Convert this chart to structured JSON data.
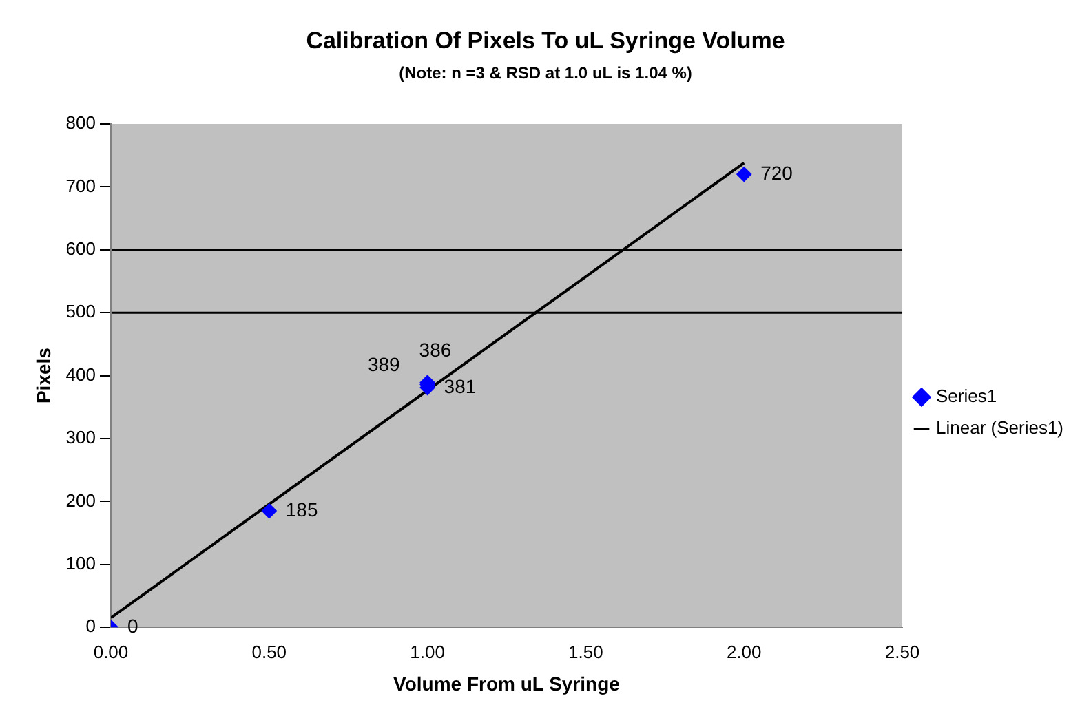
{
  "chart_data": {
    "type": "scatter",
    "title": "Calibration Of Pixels To uL Syringe Volume",
    "subtitle": "(Note: n =3 & RSD at 1.0 uL is 1.04 %)",
    "xlabel": "Volume From uL Syringe",
    "ylabel": "Pixels",
    "series": [
      {
        "name": "Series1",
        "color": "#0000ff",
        "marker": "diamond",
        "x": [
          0,
          0.5,
          1,
          1,
          1,
          2
        ],
        "values": [
          0,
          185,
          389,
          386,
          381,
          720
        ],
        "value_labels": [
          "0",
          "185",
          "389",
          "386",
          "381",
          "720"
        ]
      },
      {
        "name": "Linear (Series1)",
        "type": "line",
        "color": "#000000",
        "marker": "none",
        "line_style": "solid",
        "x": [
          0,
          2
        ],
        "values": [
          15,
          738
        ]
      }
    ],
    "xlim": [
      0,
      2.5
    ],
    "xticks": [
      {
        "value": 0,
        "label": "0.00"
      },
      {
        "value": 0.5,
        "label": "0.50"
      },
      {
        "value": 1,
        "label": "1.00"
      },
      {
        "value": 1.5,
        "label": "1.50"
      },
      {
        "value": 2,
        "label": "2.00"
      },
      {
        "value": 2.5,
        "label": "2.50"
      }
    ],
    "ylim": [
      0,
      800
    ],
    "yticks": [
      0,
      100,
      200,
      300,
      400,
      500,
      600,
      700,
      800
    ],
    "ref_lines": [
      {
        "axis": "y",
        "value": 500
      },
      {
        "axis": "y",
        "value": 600
      }
    ],
    "legend": "right",
    "grid": false
  }
}
